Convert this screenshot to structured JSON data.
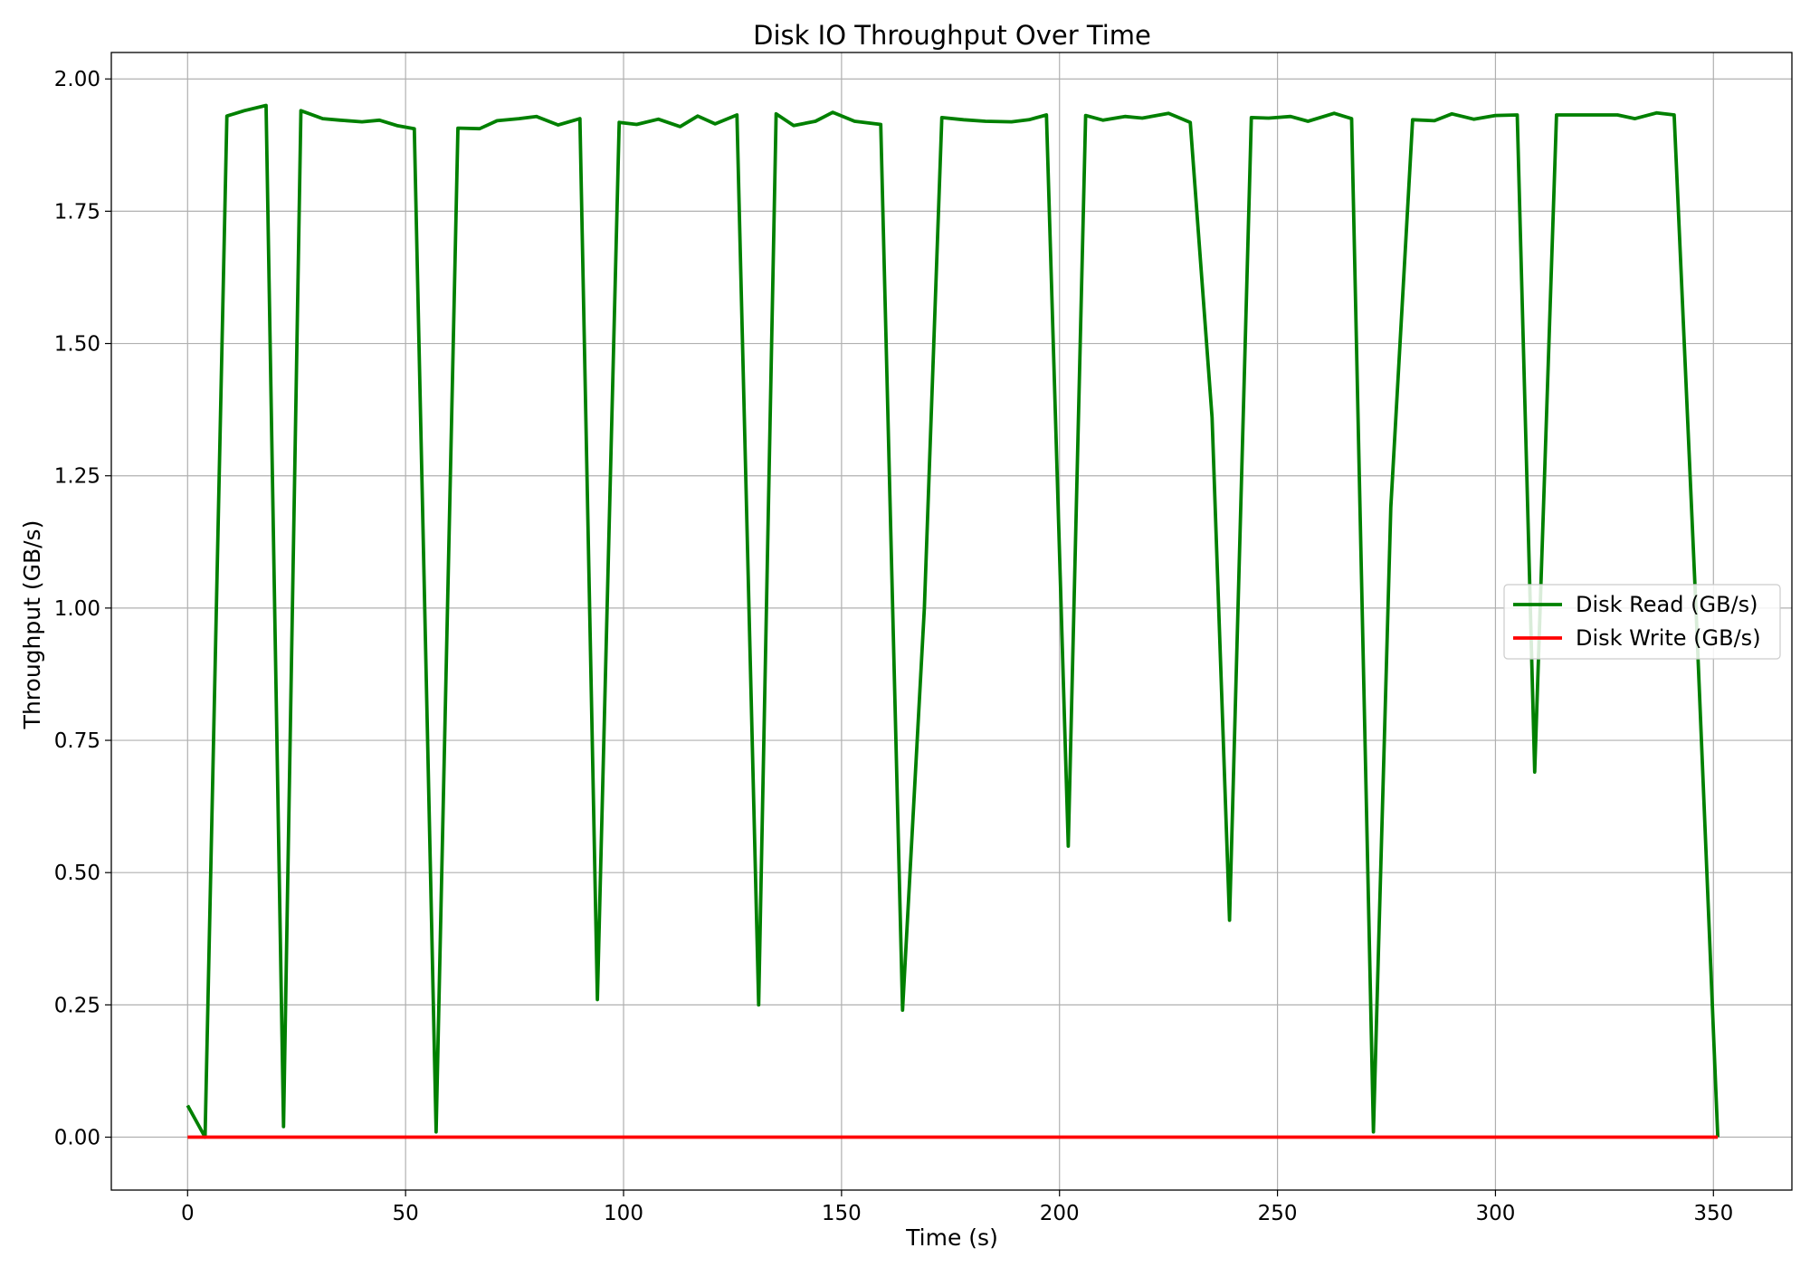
{
  "chart_data": {
    "type": "line",
    "title": "Disk IO Throughput Over Time",
    "xlabel": "Time (s)",
    "ylabel": "Throughput (GB/s)",
    "xlim": [
      -17.5,
      368
    ],
    "ylim": [
      -0.1,
      2.05
    ],
    "xticks": [
      0,
      50,
      100,
      150,
      200,
      250,
      300,
      350
    ],
    "yticks": [
      0.0,
      0.25,
      0.5,
      0.75,
      1.0,
      1.25,
      1.5,
      1.75,
      2.0
    ],
    "ytick_labels": [
      "0.00",
      "0.25",
      "0.50",
      "0.75",
      "1.00",
      "1.25",
      "1.50",
      "1.75",
      "2.00"
    ],
    "xtick_labels": [
      "0",
      "50",
      "100",
      "150",
      "200",
      "250",
      "300",
      "350"
    ],
    "grid": true,
    "legend_position": "center-right",
    "series": [
      {
        "name": "Disk Read (GB/s)",
        "color": "#008000",
        "x": [
          0,
          4,
          9,
          13,
          18,
          22,
          26,
          31,
          35,
          40,
          44,
          48,
          52,
          57,
          62,
          67,
          71,
          76,
          80,
          85,
          90,
          94,
          99,
          103,
          108,
          113,
          117,
          121,
          126,
          131,
          135,
          139,
          144,
          148,
          153,
          159,
          164,
          169,
          173,
          178,
          183,
          189,
          193,
          197,
          202,
          206,
          210,
          215,
          219,
          225,
          230,
          235,
          239,
          244,
          248,
          253,
          257,
          263,
          267,
          272,
          276,
          281,
          286,
          290,
          295,
          300,
          305,
          309,
          314,
          319,
          323,
          328,
          332,
          337,
          341,
          346,
          351
        ],
        "y": [
          0.06,
          0.0,
          1.93,
          1.94,
          1.95,
          0.02,
          1.94,
          1.925,
          1.922,
          1.919,
          1.922,
          1.912,
          1.906,
          0.01,
          1.907,
          1.906,
          1.921,
          1.925,
          1.929,
          1.913,
          1.925,
          0.26,
          1.918,
          1.914,
          1.924,
          1.91,
          1.93,
          1.915,
          1.932,
          0.25,
          1.934,
          1.912,
          1.92,
          1.937,
          1.92,
          1.914,
          0.24,
          1.0,
          1.927,
          1.923,
          1.92,
          1.919,
          1.923,
          1.932,
          0.55,
          1.931,
          1.922,
          1.929,
          1.926,
          1.935,
          1.918,
          1.36,
          0.41,
          1.927,
          1.926,
          1.929,
          1.92,
          1.935,
          1.925,
          0.01,
          1.19,
          1.923,
          1.921,
          1.934,
          1.924,
          1.931,
          1.932,
          0.69,
          1.932,
          1.932,
          1.932,
          1.932,
          1.925,
          1.936,
          1.932,
          1.0,
          0.0
        ]
      },
      {
        "name": "Disk Write (GB/s)",
        "color": "#ff0000",
        "x": [
          0,
          351
        ],
        "y": [
          0.0,
          0.0
        ]
      }
    ]
  }
}
